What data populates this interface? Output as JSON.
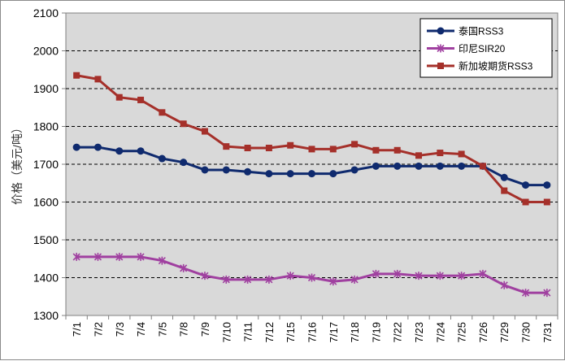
{
  "chart_data": {
    "type": "line",
    "title": "",
    "xlabel": "",
    "ylabel": "价格（美元/吨）",
    "ylim": [
      1300,
      2100
    ],
    "yticks": [
      1300,
      1400,
      1500,
      1600,
      1700,
      1800,
      1900,
      2000,
      2100
    ],
    "grid": "horizontal dashed",
    "legend_position": "top-right",
    "categories": [
      "7/1",
      "7/2",
      "7/3",
      "7/4",
      "7/5",
      "7/8",
      "7/9",
      "7/10",
      "7/11",
      "7/12",
      "7/15",
      "7/16",
      "7/17",
      "7/18",
      "7/19",
      "7/22",
      "7/23",
      "7/24",
      "7/25",
      "7/26",
      "7/29",
      "7/30",
      "7/31"
    ],
    "series": [
      {
        "name": "泰国RSS3",
        "color": "#0f2a6e",
        "marker": "circle",
        "values": [
          1745,
          1745,
          1735,
          1735,
          1715,
          1705,
          1685,
          1685,
          1680,
          1675,
          1675,
          1675,
          1675,
          1685,
          1695,
          1695,
          1695,
          1695,
          1695,
          1695,
          1665,
          1645,
          1645
        ]
      },
      {
        "name": "印尼SIR20",
        "color": "#a040a0",
        "marker": "star",
        "values": [
          1455,
          1455,
          1455,
          1455,
          1445,
          1425,
          1405,
          1395,
          1395,
          1395,
          1405,
          1400,
          1390,
          1395,
          1410,
          1410,
          1405,
          1405,
          1405,
          1410,
          1380,
          1360,
          1360
        ]
      },
      {
        "name": "新加坡期货RSS3",
        "color": "#a5302a",
        "marker": "square",
        "values": [
          1935,
          1925,
          1877,
          1870,
          1837,
          1807,
          1787,
          1747,
          1743,
          1743,
          1750,
          1740,
          1740,
          1753,
          1737,
          1737,
          1723,
          1730,
          1727,
          1695,
          1630,
          1600,
          1600
        ]
      }
    ]
  }
}
